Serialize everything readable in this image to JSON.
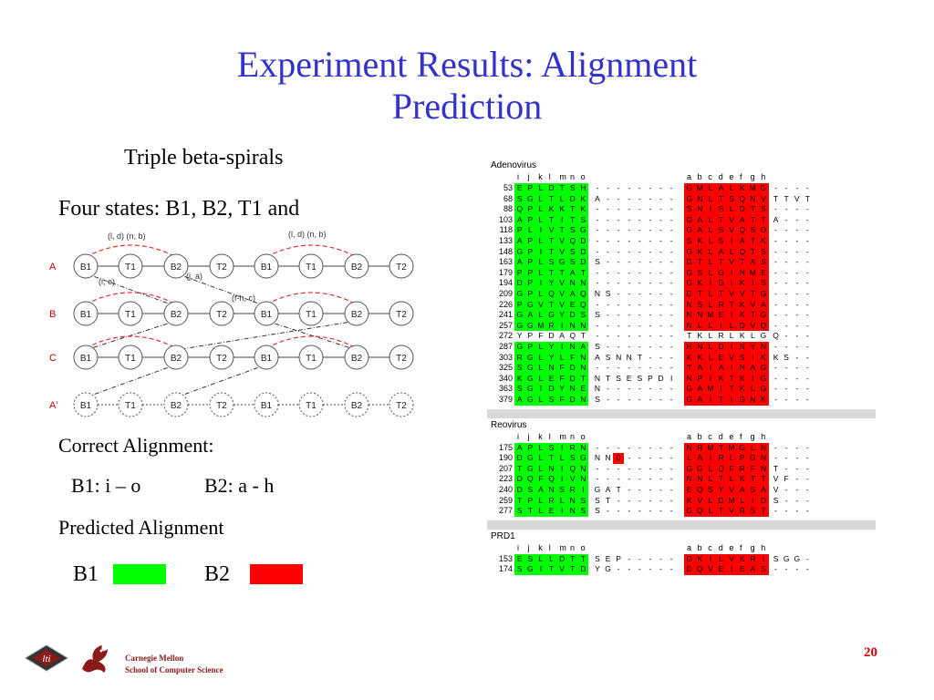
{
  "slide": {
    "title_line1": "Experiment Results: Alignment",
    "title_line2": "Prediction",
    "subtitle": "Triple beta-spirals",
    "states_text": "Four states: B1, B2, T1 and",
    "correct_heading": "Correct Alignment:",
    "correct_b1": "B1: i – o",
    "correct_b2": "B2: a - h",
    "predicted_heading": "Predicted Alignment",
    "legend_b1": "B1",
    "legend_b2": "B2",
    "legend_b1_color": "#00ff00",
    "legend_b2_color": "#ff0000",
    "page_number": "20",
    "org_line1": "Carnegie Mellon",
    "org_line2": "School of Computer Science"
  },
  "diagram": {
    "row_labels": [
      "A",
      "B",
      "C",
      "A'"
    ],
    "nodes": [
      "B1",
      "T1",
      "B2",
      "T2",
      "B1",
      "T1",
      "B2",
      "T2"
    ],
    "annotations": [
      "(l, d) (n, b)",
      "(l, d) (n, b)",
      "(i, e)",
      "(j, a)",
      "(f-h, c)"
    ]
  },
  "alignment": {
    "header_left": [
      "i",
      "j",
      "k",
      "l",
      "m",
      "n",
      "o"
    ],
    "header_right": [
      "a",
      "b",
      "c",
      "d",
      "e",
      "f",
      "g",
      "h"
    ],
    "sections": [
      {
        "name": "Adenovirus",
        "rows": [
          {
            "num": "53",
            "left": "EPLDTSH",
            "mid": "- - - - - - - -",
            "right": "GMLALKMG",
            "tail": "- - - -"
          },
          {
            "num": "68",
            "left": "SGLTLDK",
            "mid": "A - - - - - - -",
            "right": "GNLTSQNV",
            "tail": "T T V T"
          },
          {
            "num": "88",
            "left": "QPLKKTK",
            "mid": "- - - - - - - -",
            "right": "SNISLDTS",
            "tail": "- - - -"
          },
          {
            "num": "103",
            "left": "APLTITS",
            "mid": "- - - - - - - -",
            "right": "GALTVATT",
            "tail": "A - - -"
          },
          {
            "num": "118",
            "left": "PLIVTSG",
            "mid": "- - - - - - - -",
            "right": "GALSVQSD",
            "tail": "- - - -"
          },
          {
            "num": "133",
            "left": "APLTVQD",
            "mid": "- - - - - - - -",
            "right": "SKLSIATK",
            "tail": "- - - -"
          },
          {
            "num": "148",
            "left": "GPITVSD",
            "mid": "- - - - - - - -",
            "right": "GKLALQTS",
            "tail": "- - - -"
          },
          {
            "num": "163",
            "left": "APLSGSD",
            "mid": "S - - - - - - -",
            "right": "DTLTVTAS",
            "tail": "- - - -"
          },
          {
            "num": "179",
            "left": "PPLTTAT",
            "mid": "- - - - - - - -",
            "right": "GSLGINME",
            "tail": "- - - -"
          },
          {
            "num": "194",
            "left": "DPIYVNN",
            "mid": "- - - - - - - -",
            "right": "GKIGIKIS",
            "tail": "- - - -"
          },
          {
            "num": "209",
            "left": "GPLQVAQ",
            "mid": "N S - - - - - -",
            "right": "DTLTVVTG",
            "tail": "- - - -"
          },
          {
            "num": "226",
            "left": "PGVTVEQ",
            "mid": "- - - - - - - -",
            "right": "NSLRTKVA",
            "tail": "- - - -"
          },
          {
            "num": "241",
            "left": "GALGYDS",
            "mid": "S - - - - - - -",
            "right": "NNMEIKTG",
            "tail": "- - - -"
          },
          {
            "num": "257",
            "left": "GGMRINN",
            "mid": "- - - - - - - -",
            "right": "NLLILDVQ",
            "tail": "- - - -"
          },
          {
            "num": "272",
            "left": "YPFDAQT",
            "mid": "- - - - - - - -",
            "right": "TKLRLKLG",
            "tail": "Q - - -",
            "plain": true
          },
          {
            "num": "287",
            "left": "GPLYINA",
            "mid": "S - - - - - - -",
            "right": "HNLDINYN",
            "tail": "- - - -"
          },
          {
            "num": "303",
            "left": "RGLYLFN",
            "mid": "A S N N T - - -",
            "right": "KKLEVSIK",
            "tail": "K S - -"
          },
          {
            "num": "325",
            "left": "SGLNFDN",
            "mid": "- - - - - - - -",
            "right": "TAIAINAG",
            "tail": "- - - -"
          },
          {
            "num": "340",
            "left": "KGLEFDT",
            "mid": "N T S E S P D I",
            "right": "NPIKTKIG",
            "tail": "- - - -"
          },
          {
            "num": "363",
            "left": "SGIDYNE",
            "mid": "N - - - - - - -",
            "right": "GAMITKLG",
            "tail": "- - - -"
          },
          {
            "num": "379",
            "left": "AGLSFDN",
            "mid": "S - - - - - - -",
            "right": "GAITIGNK",
            "tail": "- - - -"
          }
        ]
      },
      {
        "name": "Reovirus",
        "rows": [
          {
            "num": "175",
            "left": "APLSIRN",
            "mid": "- - - - - - - -",
            "right": "NRMTMGLN",
            "tail": "- - - -"
          },
          {
            "num": "190",
            "left": "DGLTLSG",
            "mid": "N N 0 - - - - -",
            "right": "LAIRLPGN",
            "tail": "- - - -"
          },
          {
            "num": "207",
            "left": "TGLNIQN",
            "mid": "- - - - - - - -",
            "right": "GGLQFRFN",
            "tail": "T - - -"
          },
          {
            "num": "223",
            "left": "DQFQIVN",
            "mid": "- - - - - - - -",
            "right": "NNLTLKTT",
            "tail": "V F - -"
          },
          {
            "num": "240",
            "left": "DSANSRI",
            "mid": "G A T - - - - -",
            "right": "EQSYVASA",
            "tail": "V - - -"
          },
          {
            "num": "259",
            "left": "TPLRLNS",
            "mid": "S T - - - - - -",
            "right": "KVLDMLID",
            "tail": "S - - -"
          },
          {
            "num": "277",
            "left": "STLEINS",
            "mid": "S - - - - - - -",
            "right": "GQLTVRST",
            "tail": "- - - -"
          }
        ]
      },
      {
        "name": "PRD1",
        "rows": [
          {
            "num": "153",
            "left": "ESLLDTT",
            "mid": "S E P - - - - -",
            "right": "GKILVKRI",
            "tail": "S G G -"
          },
          {
            "num": "174",
            "left": "SGITVTD",
            "mid": "Y G - - - - - -",
            "right": "DQVEIEAS",
            "tail": "- - - -"
          }
        ]
      }
    ]
  }
}
